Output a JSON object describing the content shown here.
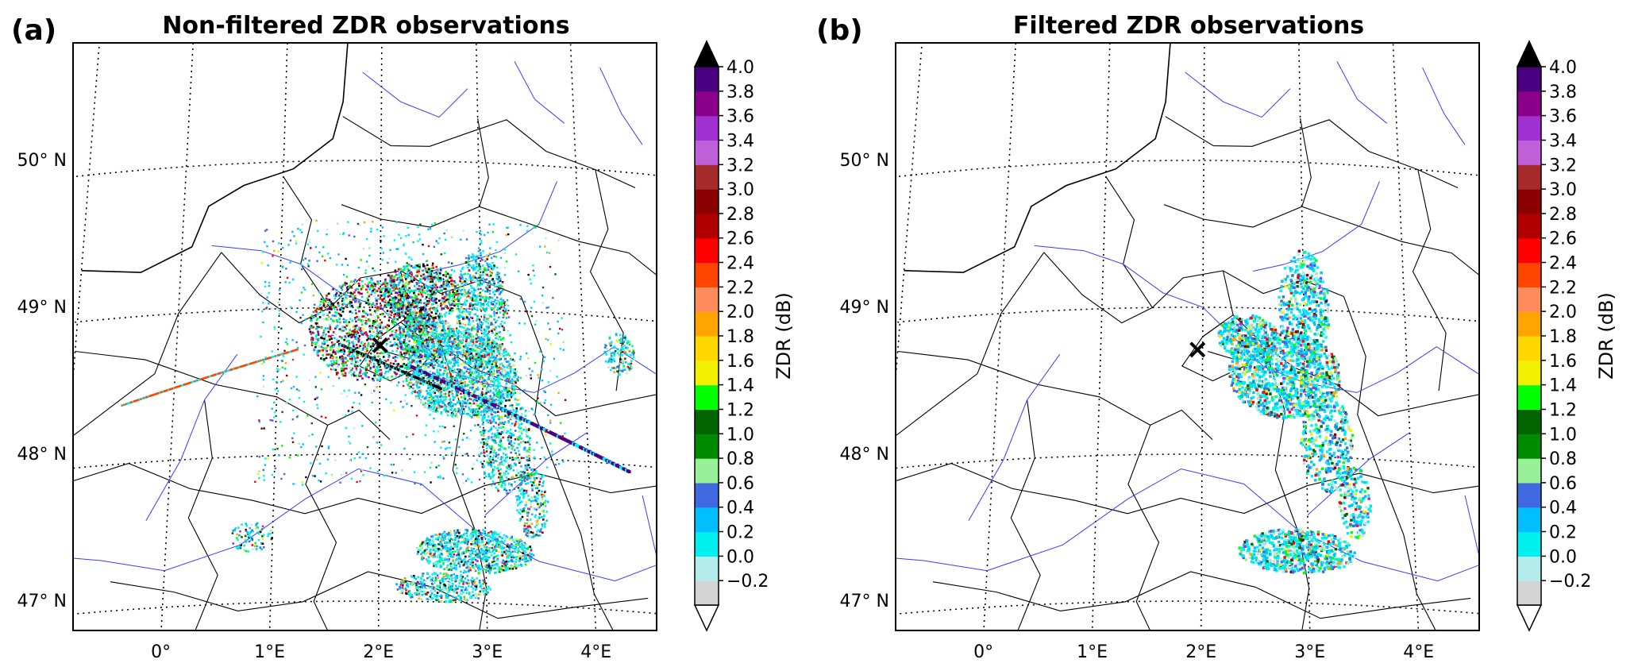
{
  "chart_data": [
    {
      "type": "heatmap",
      "panel_label": "(a)",
      "title": "Non-filtered ZDR observations",
      "x_ticks": [
        "0°",
        "1°E",
        "2°E",
        "3°E",
        "4°E"
      ],
      "y_ticks": [
        "47° N",
        "48° N",
        "49° N",
        "50° N"
      ],
      "xlim": [
        -1.0,
        4.7
      ],
      "ylim": [
        46.8,
        50.8
      ],
      "grid": true,
      "marker_label": "×",
      "marker": {
        "lon": 2.0,
        "lat": 48.75
      },
      "colorbar": {
        "label": "ZDR (dB)",
        "ticks": [
          "−0.2",
          "0.0",
          "0.2",
          "0.4",
          "0.6",
          "0.8",
          "1.0",
          "1.2",
          "1.4",
          "1.6",
          "1.8",
          "2.0",
          "2.2",
          "2.4",
          "2.6",
          "2.8",
          "3.0",
          "3.2",
          "3.4",
          "3.6",
          "3.8",
          "4.0"
        ],
        "colors": [
          "#d4d4d4",
          "#b4ecec",
          "#00f0f0",
          "#00bfff",
          "#4169e1",
          "#98f098",
          "#008a00",
          "#006400",
          "#00ff00",
          "#f0f000",
          "#ffd700",
          "#ffa500",
          "#ff8c5a",
          "#ff4500",
          "#ff0000",
          "#b00000",
          "#8b0000",
          "#a52a2a",
          "#c060d8",
          "#a030d0",
          "#8b008b",
          "#4b0082",
          "#000000"
        ],
        "extend": "both"
      }
    },
    {
      "type": "heatmap",
      "panel_label": "(b)",
      "title": "Filtered ZDR observations",
      "x_ticks": [
        "0°",
        "1°E",
        "2°E",
        "3°E",
        "4°E"
      ],
      "y_ticks": [
        "47° N",
        "48° N",
        "49° N",
        "50° N"
      ],
      "xlim": [
        -1.0,
        4.7
      ],
      "ylim": [
        46.8,
        50.8
      ],
      "grid": true,
      "marker_label": "×",
      "marker": {
        "lon": 1.95,
        "lat": 48.72
      },
      "colorbar": {
        "label": "ZDR (dB)",
        "ticks": [
          "−0.2",
          "0.0",
          "0.2",
          "0.4",
          "0.6",
          "0.8",
          "1.0",
          "1.2",
          "1.4",
          "1.6",
          "1.8",
          "2.0",
          "2.2",
          "2.4",
          "2.6",
          "2.8",
          "3.0",
          "3.2",
          "3.4",
          "3.6",
          "3.8",
          "4.0"
        ],
        "colors": [
          "#d4d4d4",
          "#b4ecec",
          "#00f0f0",
          "#00bfff",
          "#4169e1",
          "#98f098",
          "#008a00",
          "#006400",
          "#00ff00",
          "#f0f000",
          "#ffd700",
          "#ffa500",
          "#ff8c5a",
          "#ff4500",
          "#ff0000",
          "#b00000",
          "#8b0000",
          "#a52a2a",
          "#c060d8",
          "#a030d0",
          "#8b008b",
          "#4b0082",
          "#000000"
        ],
        "extend": "both"
      }
    }
  ]
}
